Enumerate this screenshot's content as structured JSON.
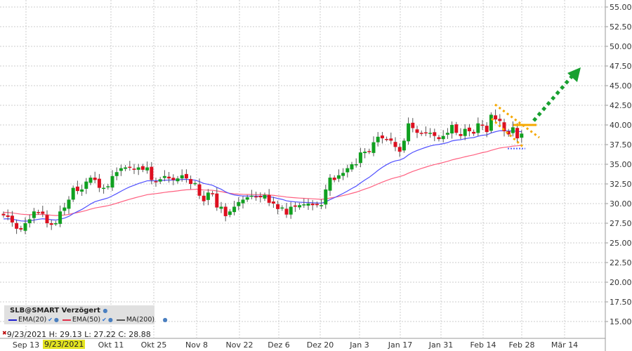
{
  "chart_data": {
    "type": "candlestick",
    "title": "SLB@SMART Verzögert",
    "ylim": [
      13.5,
      56
    ],
    "yticks": [
      "55.00",
      "52.50",
      "50.00",
      "47.50",
      "45.00",
      "42.50",
      "40.00",
      "37.50",
      "35.00",
      "32.50",
      "30.00",
      "27.50",
      "25.00",
      "22.50",
      "20.00",
      "17.50",
      "15.00"
    ],
    "xticks": [
      "Sep 13",
      "Okt 11",
      "Okt 25",
      "Nov 8",
      "Nov 22",
      "Dez 6",
      "Dez 20",
      "Jan 3",
      "Jan 17",
      "Jan 31",
      "Feb 14",
      "Feb 28",
      "Mär 14"
    ],
    "closes": [
      28.5,
      28.3,
      27.6,
      26.8,
      26.7,
      27.5,
      28.0,
      29.0,
      28.9,
      28.7,
      27.5,
      27.3,
      27.5,
      29.0,
      29.5,
      30.5,
      32.0,
      31.6,
      31.8,
      32.8,
      33.3,
      33.0,
      32.0,
      32.0,
      32.2,
      33.5,
      34.0,
      34.5,
      34.6,
      34.6,
      34.3,
      34.6,
      34.3,
      34.6,
      33.0,
      32.8,
      33.1,
      33.5,
      33.2,
      33.0,
      33.2,
      33.6,
      33.2,
      32.5,
      32.6,
      31.0,
      30.3,
      31.4,
      31.2,
      29.5,
      29.6,
      28.4,
      29.0,
      29.6,
      30.2,
      30.5,
      30.8,
      31.0,
      30.9,
      30.8,
      31.1,
      30.1,
      30.0,
      29.3,
      29.5,
      28.6,
      29.6,
      29.6,
      29.8,
      29.9,
      30.0,
      29.8,
      29.8,
      29.8,
      31.8,
      33.3,
      33.0,
      33.6,
      33.9,
      34.5,
      35.0,
      35.0,
      36.5,
      36.6,
      36.6,
      37.8,
      38.5,
      38.3,
      38.2,
      38.0,
      37.2,
      36.6,
      38.0,
      40.2,
      39.6,
      39.0,
      38.9,
      39.0,
      39.0,
      38.6,
      38.2,
      38.6,
      39.0,
      40.0,
      39.0,
      38.6,
      39.5,
      39.2,
      38.9,
      40.2,
      39.9,
      39.1,
      41.3,
      40.7,
      40.5,
      39.2,
      38.8,
      39.7,
      38.3,
      38.9
    ],
    "series": [
      {
        "name": "EMA(20)",
        "color": "#4040ff",
        "seed": 28.0
      },
      {
        "name": "EMA(50)",
        "color": "#ff4060",
        "seed": 28.9
      },
      {
        "name": "MA(200)",
        "color": "#555555"
      }
    ],
    "annotations": {
      "resistance_level": 40.0,
      "support_level": 37.0,
      "target_arrow_to": 47.0
    }
  },
  "legend": {
    "title": "SLB@SMART Verzögert",
    "items": [
      "EMA(20)",
      "EMA(50)",
      "MA(200)"
    ]
  },
  "crosshair": {
    "date": "9/23/2021",
    "readout": "9/23/2021  H: 29.13  L: 27.22  C: 28.88"
  }
}
